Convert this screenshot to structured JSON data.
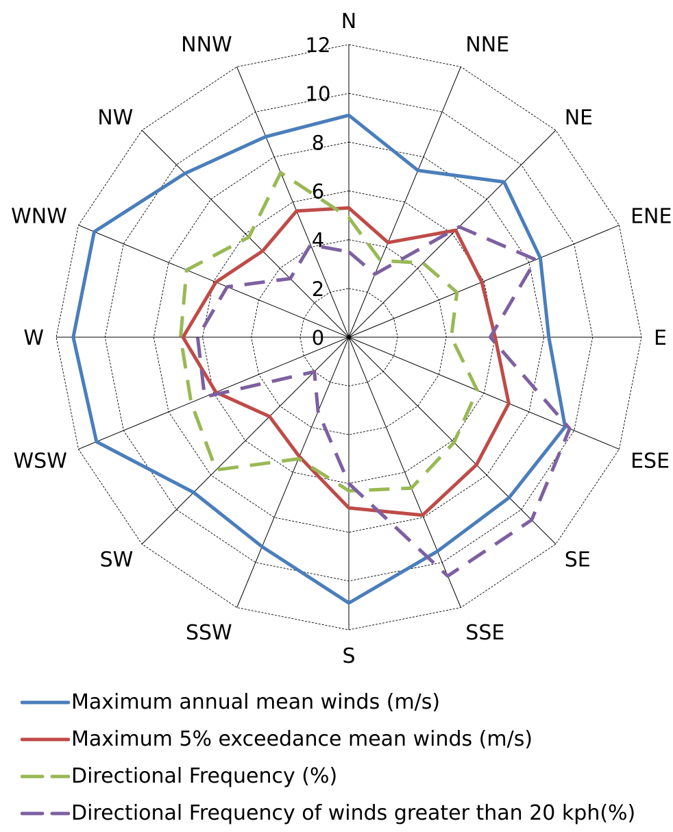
{
  "chart_data": {
    "type": "radar",
    "categories": [
      "N",
      "NNE",
      "NE",
      "ENE",
      "E",
      "ESE",
      "SE",
      "SSE",
      "S",
      "SSW",
      "SW",
      "WSW",
      "W",
      "WNW",
      "NW",
      "NNW"
    ],
    "rlim": [
      0,
      12
    ],
    "rticks": [
      "0",
      "2",
      "4",
      "6",
      "8",
      "10",
      "12"
    ],
    "rtick_values": [
      0,
      2,
      4,
      6,
      8,
      10,
      12
    ],
    "grid": true,
    "legend_position": "bottom",
    "series": [
      {
        "name": "Maximum annual mean winds (m/s)",
        "color": "#4a7ebb",
        "dashed": false,
        "values": [
          9.1,
          7.4,
          9.0,
          8.5,
          8.2,
          9.6,
          9.3,
          9.5,
          10.9,
          9.3,
          9.0,
          11.2,
          11.3,
          11.3,
          9.5,
          8.9
        ]
      },
      {
        "name": "Maximum 5% exceedance mean winds (m/s)",
        "color": "#be4b48",
        "dashed": false,
        "values": [
          5.3,
          4.2,
          6.2,
          5.9,
          6.0,
          7.1,
          7.4,
          7.9,
          7.0,
          5.3,
          4.6,
          5.9,
          6.8,
          5.9,
          5.0,
          5.6
        ]
      },
      {
        "name": "Directional Frequency (%)",
        "color": "#98b954",
        "dashed": true,
        "values": [
          4.9,
          3.4,
          4.3,
          4.8,
          4.2,
          5.7,
          6.1,
          6.7,
          6.3,
          5.4,
          7.7,
          7.0,
          6.9,
          7.2,
          5.8,
          7.3
        ]
      },
      {
        "name": "Directional Frequency  of winds greater than 20 kph(%)",
        "color": "#7d60a0",
        "dashed": true,
        "values": [
          3.5,
          2.8,
          6.4,
          8.3,
          5.8,
          9.8,
          10.6,
          10.6,
          6.0,
          3.3,
          2.0,
          6.4,
          6.2,
          5.4,
          3.4,
          4.1
        ]
      }
    ]
  }
}
